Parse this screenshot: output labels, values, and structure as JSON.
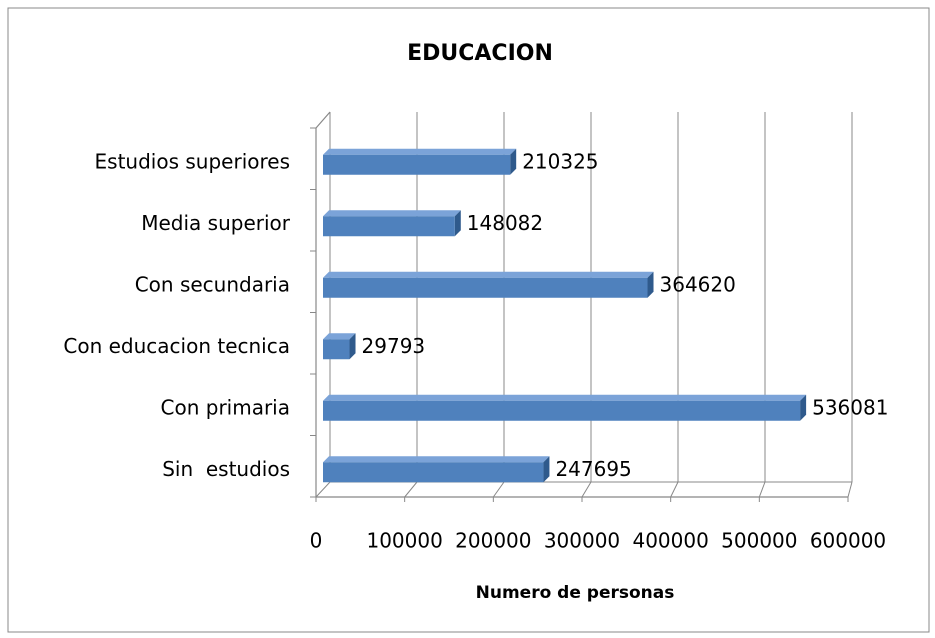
{
  "chart_data": {
    "type": "bar3d_horizontal",
    "title": "EDUCACION",
    "x_label": "Numero de personas",
    "categories": [
      "Estudios superiores",
      "Media superior",
      "Con secundaria",
      "Con educacion tecnica",
      "Con primaria",
      "Sin  estudios"
    ],
    "values": [
      210325,
      148082,
      364620,
      29793,
      536081,
      247695
    ],
    "color": "#4f81bd",
    "xlim": [
      0,
      600000
    ],
    "xticks": [
      0,
      100000,
      200000,
      300000,
      400000,
      500000,
      600000
    ],
    "grid": true
  }
}
